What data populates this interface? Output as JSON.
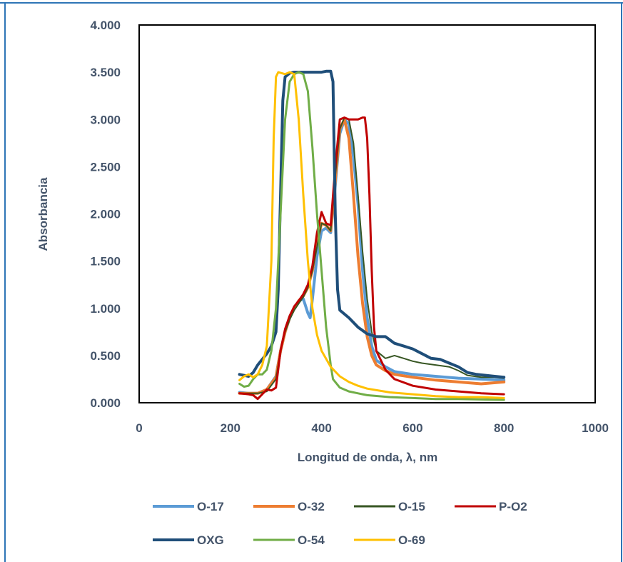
{
  "colors": {
    "frame": "#2e75b6",
    "axis_text": "#44546a",
    "plot_border": "#000000"
  },
  "chart_data": {
    "type": "line",
    "title": "",
    "xlabel": "Longitud de onda, λ, nm",
    "ylabel": "Absorbancia",
    "xlim": [
      0,
      1000
    ],
    "ylim": [
      0,
      4
    ],
    "x_ticks": [
      "0",
      "200",
      "400",
      "600",
      "800",
      "1000"
    ],
    "y_ticks": [
      "0.000",
      "0.500",
      "1.000",
      "1.500",
      "2.000",
      "2.500",
      "3.000",
      "3.500",
      "4.000"
    ],
    "grid": false,
    "legend_position": "bottom",
    "series": [
      {
        "name": "O-17",
        "color": "#5b9bd5",
        "width": 4,
        "points": [
          [
            220,
            0.11
          ],
          [
            240,
            0.1
          ],
          [
            260,
            0.1
          ],
          [
            280,
            0.14
          ],
          [
            300,
            0.28
          ],
          [
            310,
            0.55
          ],
          [
            320,
            0.75
          ],
          [
            330,
            0.9
          ],
          [
            340,
            1.0
          ],
          [
            350,
            1.08
          ],
          [
            360,
            1.1
          ],
          [
            370,
            0.95
          ],
          [
            375,
            0.9
          ],
          [
            380,
            1.1
          ],
          [
            390,
            1.55
          ],
          [
            400,
            1.82
          ],
          [
            410,
            1.85
          ],
          [
            420,
            1.8
          ],
          [
            430,
            2.3
          ],
          [
            440,
            2.85
          ],
          [
            450,
            3.0
          ],
          [
            460,
            2.95
          ],
          [
            470,
            2.6
          ],
          [
            480,
            2.1
          ],
          [
            490,
            1.4
          ],
          [
            500,
            0.9
          ],
          [
            510,
            0.6
          ],
          [
            520,
            0.45
          ],
          [
            540,
            0.38
          ],
          [
            560,
            0.33
          ],
          [
            600,
            0.3
          ],
          [
            650,
            0.28
          ],
          [
            700,
            0.26
          ],
          [
            750,
            0.25
          ],
          [
            800,
            0.24
          ]
        ]
      },
      {
        "name": "O-32",
        "color": "#ed7d31",
        "width": 4,
        "points": [
          [
            220,
            0.1
          ],
          [
            240,
            0.1
          ],
          [
            260,
            0.1
          ],
          [
            280,
            0.14
          ],
          [
            300,
            0.27
          ],
          [
            310,
            0.55
          ],
          [
            320,
            0.75
          ],
          [
            330,
            0.9
          ],
          [
            340,
            1.0
          ],
          [
            350,
            1.08
          ],
          [
            360,
            1.13
          ],
          [
            370,
            1.22
          ],
          [
            380,
            1.4
          ],
          [
            390,
            1.7
          ],
          [
            400,
            1.9
          ],
          [
            410,
            1.88
          ],
          [
            420,
            1.82
          ],
          [
            430,
            2.35
          ],
          [
            440,
            2.9
          ],
          [
            450,
            3.0
          ],
          [
            460,
            2.8
          ],
          [
            470,
            2.2
          ],
          [
            480,
            1.55
          ],
          [
            490,
            1.05
          ],
          [
            500,
            0.7
          ],
          [
            510,
            0.5
          ],
          [
            520,
            0.4
          ],
          [
            540,
            0.34
          ],
          [
            560,
            0.3
          ],
          [
            600,
            0.27
          ],
          [
            650,
            0.24
          ],
          [
            700,
            0.22
          ],
          [
            750,
            0.2
          ],
          [
            800,
            0.22
          ]
        ]
      },
      {
        "name": "O-15",
        "color": "#375623",
        "width": 2,
        "points": [
          [
            220,
            0.1
          ],
          [
            240,
            0.1
          ],
          [
            260,
            0.1
          ],
          [
            280,
            0.12
          ],
          [
            300,
            0.25
          ],
          [
            310,
            0.55
          ],
          [
            320,
            0.75
          ],
          [
            330,
            0.88
          ],
          [
            340,
            0.98
          ],
          [
            350,
            1.05
          ],
          [
            360,
            1.12
          ],
          [
            370,
            1.22
          ],
          [
            380,
            1.4
          ],
          [
            390,
            1.65
          ],
          [
            400,
            1.9
          ],
          [
            410,
            1.88
          ],
          [
            420,
            1.82
          ],
          [
            430,
            2.4
          ],
          [
            440,
            2.9
          ],
          [
            450,
            3.02
          ],
          [
            460,
            3.0
          ],
          [
            470,
            2.75
          ],
          [
            480,
            2.2
          ],
          [
            490,
            1.6
          ],
          [
            500,
            1.1
          ],
          [
            510,
            0.75
          ],
          [
            520,
            0.55
          ],
          [
            540,
            0.47
          ],
          [
            560,
            0.5
          ],
          [
            580,
            0.47
          ],
          [
            600,
            0.44
          ],
          [
            620,
            0.42
          ],
          [
            650,
            0.4
          ],
          [
            680,
            0.38
          ],
          [
            700,
            0.34
          ],
          [
            720,
            0.29
          ],
          [
            750,
            0.27
          ],
          [
            780,
            0.27
          ],
          [
            800,
            0.26
          ]
        ]
      },
      {
        "name": "P-O2",
        "color": "#c00000",
        "width": 3,
        "points": [
          [
            220,
            0.1
          ],
          [
            240,
            0.09
          ],
          [
            250,
            0.08
          ],
          [
            260,
            0.04
          ],
          [
            270,
            0.09
          ],
          [
            280,
            0.14
          ],
          [
            290,
            0.13
          ],
          [
            300,
            0.16
          ],
          [
            310,
            0.55
          ],
          [
            320,
            0.78
          ],
          [
            330,
            0.92
          ],
          [
            340,
            1.02
          ],
          [
            350,
            1.08
          ],
          [
            360,
            1.15
          ],
          [
            370,
            1.25
          ],
          [
            380,
            1.45
          ],
          [
            390,
            1.8
          ],
          [
            400,
            2.02
          ],
          [
            410,
            1.9
          ],
          [
            420,
            1.88
          ],
          [
            430,
            2.5
          ],
          [
            440,
            3.0
          ],
          [
            450,
            3.02
          ],
          [
            460,
            3.0
          ],
          [
            470,
            3.0
          ],
          [
            480,
            3.0
          ],
          [
            490,
            3.02
          ],
          [
            495,
            3.02
          ],
          [
            500,
            2.8
          ],
          [
            505,
            2.2
          ],
          [
            510,
            1.4
          ],
          [
            515,
            0.8
          ],
          [
            520,
            0.55
          ],
          [
            540,
            0.35
          ],
          [
            560,
            0.25
          ],
          [
            600,
            0.18
          ],
          [
            650,
            0.14
          ],
          [
            700,
            0.12
          ],
          [
            750,
            0.1
          ],
          [
            800,
            0.09
          ]
        ]
      },
      {
        "name": "OXG",
        "color": "#1f4e79",
        "width": 4,
        "points": [
          [
            220,
            0.3
          ],
          [
            240,
            0.28
          ],
          [
            250,
            0.32
          ],
          [
            260,
            0.4
          ],
          [
            280,
            0.52
          ],
          [
            290,
            0.6
          ],
          [
            300,
            0.75
          ],
          [
            305,
            1.2
          ],
          [
            310,
            2.2
          ],
          [
            315,
            3.2
          ],
          [
            320,
            3.45
          ],
          [
            330,
            3.49
          ],
          [
            340,
            3.5
          ],
          [
            360,
            3.5
          ],
          [
            380,
            3.5
          ],
          [
            400,
            3.5
          ],
          [
            410,
            3.51
          ],
          [
            420,
            3.51
          ],
          [
            425,
            3.4
          ],
          [
            430,
            2.0
          ],
          [
            435,
            1.2
          ],
          [
            440,
            0.98
          ],
          [
            460,
            0.9
          ],
          [
            480,
            0.8
          ],
          [
            500,
            0.73
          ],
          [
            520,
            0.7
          ],
          [
            540,
            0.7
          ],
          [
            560,
            0.63
          ],
          [
            580,
            0.6
          ],
          [
            600,
            0.57
          ],
          [
            620,
            0.52
          ],
          [
            640,
            0.47
          ],
          [
            660,
            0.46
          ],
          [
            680,
            0.42
          ],
          [
            700,
            0.38
          ],
          [
            720,
            0.32
          ],
          [
            740,
            0.3
          ],
          [
            760,
            0.29
          ],
          [
            780,
            0.28
          ],
          [
            800,
            0.27
          ]
        ]
      },
      {
        "name": "O-54",
        "color": "#70ad47",
        "width": 3,
        "points": [
          [
            220,
            0.2
          ],
          [
            230,
            0.17
          ],
          [
            240,
            0.18
          ],
          [
            250,
            0.25
          ],
          [
            260,
            0.3
          ],
          [
            270,
            0.3
          ],
          [
            280,
            0.35
          ],
          [
            290,
            0.55
          ],
          [
            300,
            1.0
          ],
          [
            310,
            2.0
          ],
          [
            320,
            3.0
          ],
          [
            330,
            3.4
          ],
          [
            340,
            3.48
          ],
          [
            350,
            3.5
          ],
          [
            360,
            3.48
          ],
          [
            370,
            3.3
          ],
          [
            380,
            2.7
          ],
          [
            390,
            2.0
          ],
          [
            400,
            1.4
          ],
          [
            410,
            0.8
          ],
          [
            420,
            0.4
          ],
          [
            425,
            0.25
          ],
          [
            440,
            0.16
          ],
          [
            460,
            0.12
          ],
          [
            480,
            0.1
          ],
          [
            500,
            0.08
          ],
          [
            550,
            0.06
          ],
          [
            600,
            0.05
          ],
          [
            650,
            0.04
          ],
          [
            700,
            0.04
          ],
          [
            800,
            0.03
          ]
        ]
      },
      {
        "name": "O-69",
        "color": "#ffc000",
        "width": 3,
        "points": [
          [
            220,
            0.24
          ],
          [
            230,
            0.28
          ],
          [
            240,
            0.3
          ],
          [
            250,
            0.27
          ],
          [
            260,
            0.3
          ],
          [
            270,
            0.4
          ],
          [
            280,
            0.6
          ],
          [
            290,
            1.5
          ],
          [
            295,
            2.8
          ],
          [
            300,
            3.45
          ],
          [
            305,
            3.5
          ],
          [
            320,
            3.48
          ],
          [
            330,
            3.5
          ],
          [
            340,
            3.48
          ],
          [
            350,
            3.0
          ],
          [
            360,
            2.2
          ],
          [
            370,
            1.5
          ],
          [
            380,
            1.0
          ],
          [
            390,
            0.72
          ],
          [
            400,
            0.55
          ],
          [
            420,
            0.38
          ],
          [
            440,
            0.28
          ],
          [
            460,
            0.22
          ],
          [
            480,
            0.18
          ],
          [
            500,
            0.15
          ],
          [
            550,
            0.11
          ],
          [
            600,
            0.09
          ],
          [
            650,
            0.07
          ],
          [
            700,
            0.06
          ],
          [
            750,
            0.06
          ],
          [
            800,
            0.05
          ]
        ]
      }
    ]
  }
}
